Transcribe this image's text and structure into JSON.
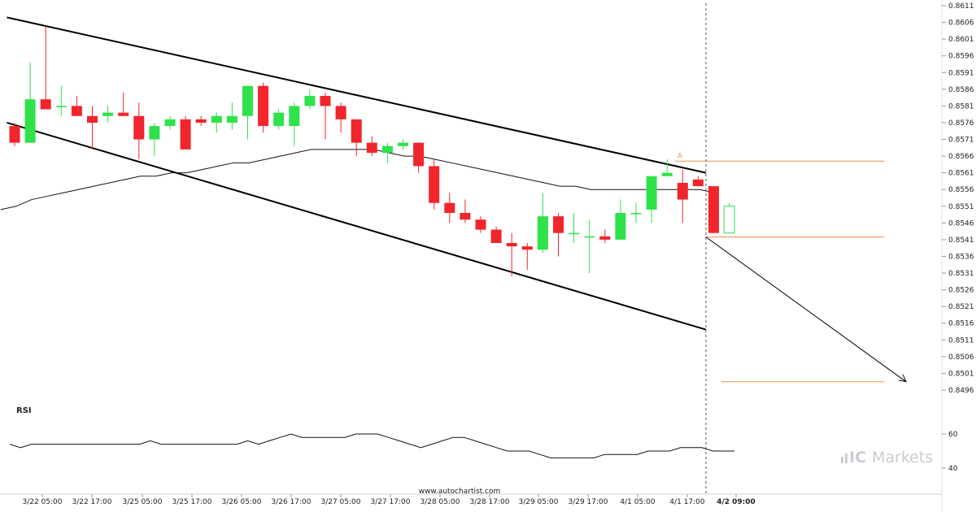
{
  "chart_data": {
    "type": "candlestick",
    "price_ylim": [
      0.8492,
      0.8613
    ],
    "y_ticks": [
      "0.8611",
      "0.8606",
      "0.8601",
      "0.8596",
      "0.8591",
      "0.8586",
      "0.8581",
      "0.8576",
      "0.8571",
      "0.8566",
      "0.8561",
      "0.8556",
      "0.8551",
      "0.8546",
      "0.8541",
      "0.8536",
      "0.8531",
      "0.8526",
      "0.8521",
      "0.8516",
      "0.8511",
      "0.8506",
      "0.8501",
      "0.8496"
    ],
    "x_ticks": [
      "3/22 05:00",
      "3/22 17:00",
      "3/25 05:00",
      "3/25 17:00",
      "3/26 05:00",
      "3/26 17:00",
      "3/27 05:00",
      "3/27 17:00",
      "3/28 05:00",
      "3/28 17:00",
      "3/29 05:00",
      "3/29 17:00",
      "4/1 05:00",
      "4/1 17:00",
      "4/2 09:00"
    ],
    "highlight_x_tick": "4/2 09:00",
    "candles": [
      [
        0.8575,
        0.8576,
        0.8569,
        0.857
      ],
      [
        0.857,
        0.8594,
        0.857,
        0.8583
      ],
      [
        0.8583,
        0.8605,
        0.858,
        0.858
      ],
      [
        0.8581,
        0.8587,
        0.8578,
        0.8581
      ],
      [
        0.8581,
        0.8584,
        0.8578,
        0.8578
      ],
      [
        0.8578,
        0.8581,
        0.8568,
        0.8576
      ],
      [
        0.8578,
        0.8581,
        0.8576,
        0.8579
      ],
      [
        0.8579,
        0.8585,
        0.8578,
        0.8578
      ],
      [
        0.8578,
        0.8582,
        0.8565,
        0.8571
      ],
      [
        0.8571,
        0.8576,
        0.8566,
        0.8575
      ],
      [
        0.8575,
        0.8578,
        0.8574,
        0.8577
      ],
      [
        0.8577,
        0.8578,
        0.8568,
        0.8568
      ],
      [
        0.8577,
        0.8578,
        0.8575,
        0.8576
      ],
      [
        0.8576,
        0.8579,
        0.8573,
        0.8578
      ],
      [
        0.8576,
        0.8582,
        0.8574,
        0.8578
      ],
      [
        0.8578,
        0.8587,
        0.8571,
        0.8587
      ],
      [
        0.8587,
        0.8588,
        0.8573,
        0.8575
      ],
      [
        0.8575,
        0.858,
        0.8574,
        0.8579
      ],
      [
        0.8575,
        0.8582,
        0.8569,
        0.8581
      ],
      [
        0.8581,
        0.8586,
        0.858,
        0.8584
      ],
      [
        0.8584,
        0.8585,
        0.8571,
        0.8581
      ],
      [
        0.8581,
        0.8582,
        0.8573,
        0.8577
      ],
      [
        0.8577,
        0.8577,
        0.8566,
        0.857
      ],
      [
        0.857,
        0.8572,
        0.8566,
        0.8567
      ],
      [
        0.8567,
        0.857,
        0.8564,
        0.8569
      ],
      [
        0.8569,
        0.8571,
        0.8568,
        0.857
      ],
      [
        0.857,
        0.857,
        0.8561,
        0.8563
      ],
      [
        0.8563,
        0.8565,
        0.855,
        0.8552
      ],
      [
        0.8552,
        0.8555,
        0.8546,
        0.8549
      ],
      [
        0.8549,
        0.8553,
        0.8546,
        0.8547
      ],
      [
        0.8547,
        0.8548,
        0.8543,
        0.8544
      ],
      [
        0.8544,
        0.8545,
        0.854,
        0.854
      ],
      [
        0.854,
        0.8543,
        0.853,
        0.8539
      ],
      [
        0.8539,
        0.854,
        0.8532,
        0.8538
      ],
      [
        0.8538,
        0.8555,
        0.8537,
        0.8548
      ],
      [
        0.8548,
        0.8549,
        0.8536,
        0.8543
      ],
      [
        0.8543,
        0.8549,
        0.854,
        0.8543
      ],
      [
        0.8542,
        0.8547,
        0.8531,
        0.8542
      ],
      [
        0.8542,
        0.8544,
        0.854,
        0.8541
      ],
      [
        0.8541,
        0.8553,
        0.8541,
        0.8549
      ],
      [
        0.8549,
        0.8552,
        0.8546,
        0.8549
      ],
      [
        0.855,
        0.856,
        0.8546,
        0.856
      ],
      [
        0.856,
        0.8565,
        0.856,
        0.8561
      ],
      [
        0.8558,
        0.8562,
        0.8546,
        0.8553
      ],
      [
        0.8559,
        0.856,
        0.8557,
        0.8557
      ],
      [
        0.8557,
        0.8557,
        0.8543,
        0.8543
      ],
      [
        0.8543,
        0.8552,
        0.8543,
        0.8551
      ]
    ],
    "moving_average": [
      0.855,
      0.8551,
      0.8553,
      0.8554,
      0.8555,
      0.8556,
      0.8557,
      0.8558,
      0.8559,
      0.856,
      0.856,
      0.8561,
      0.8561,
      0.8562,
      0.8563,
      0.8564,
      0.8564,
      0.8565,
      0.8566,
      0.8567,
      0.8568,
      0.8568,
      0.8568,
      0.8568,
      0.8568,
      0.8567,
      0.8566,
      0.8566,
      0.8565,
      0.8564,
      0.8563,
      0.8562,
      0.8561,
      0.856,
      0.8559,
      0.8558,
      0.8557,
      0.8557,
      0.8556,
      0.8556,
      0.8556,
      0.8556,
      0.8556,
      0.8556,
      0.8556,
      0.8556,
      0.8555
    ],
    "channel": {
      "upper": [
        [
          -0.5,
          0.86075
        ],
        [
          44.5,
          0.8561
        ]
      ],
      "lower": [
        [
          -0.5,
          0.8576
        ],
        [
          44.5,
          0.85141
        ]
      ]
    },
    "level_lines": [
      {
        "price": 0.85645,
        "start_index": 42.5,
        "end_index": 54,
        "color": "#e8914a",
        "label": "A"
      },
      {
        "price": 0.85418,
        "start_index": 44.5,
        "end_index": 54,
        "color": "#e8914a",
        "label": ""
      },
      {
        "price": 0.84985,
        "start_index": 45.5,
        "end_index": 54,
        "color": "#e8914a",
        "label": ""
      }
    ],
    "projection_arrow": {
      "from": [
        44.5,
        0.85418
      ],
      "to": [
        54,
        0.84985
      ]
    },
    "rsi": {
      "label": "RSI",
      "ylim": [
        34,
        70
      ],
      "ticks": [
        "60",
        "40"
      ],
      "values": [
        54,
        52,
        54,
        54,
        54,
        54,
        54,
        54,
        54,
        54,
        54,
        54,
        54,
        56,
        54,
        54,
        54,
        54,
        54,
        54,
        54,
        54,
        56,
        54,
        56,
        58,
        60,
        58,
        58,
        58,
        58,
        58,
        60,
        60,
        60,
        58,
        56,
        54,
        52,
        54,
        56,
        58,
        58,
        56,
        54,
        52,
        50,
        50,
        50,
        48,
        46,
        46,
        46,
        46,
        46,
        48,
        48,
        48,
        48,
        50,
        50,
        50,
        52,
        52,
        52,
        50,
        50,
        50
      ]
    },
    "colors": {
      "up": "#2fe24a",
      "down": "#f0262c",
      "level": "#e8914a",
      "grid": "#d9d9d9",
      "channel": "#000000"
    }
  },
  "footer": {
    "credit": "www.autochartist.com"
  },
  "brand": {
    "ic": "IC",
    "markets": "Markets"
  }
}
